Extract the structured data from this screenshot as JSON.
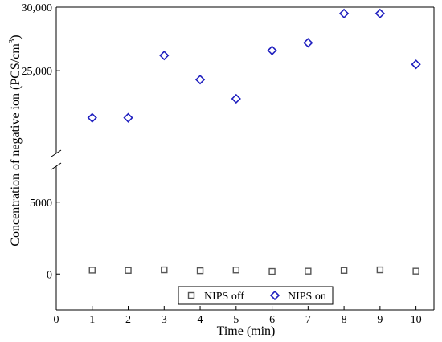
{
  "chart_data": {
    "type": "scatter",
    "xlabel": "Time (min)",
    "ylabel_main": "Concentration of negative ion (PCS/cm",
    "ylabel_sup": "3",
    "ylabel_end": ")",
    "x_ticks": [
      "0",
      "1",
      "2",
      "3",
      "4",
      "5",
      "6",
      "7",
      "8",
      "9",
      "10"
    ],
    "xlim": [
      0,
      10.5
    ],
    "y_axis_break": true,
    "y_lower_range": [
      -2500,
      7500
    ],
    "y_upper_range": [
      18500,
      30000
    ],
    "y_ticks_lower": [
      {
        "value": 0,
        "label": "0"
      },
      {
        "value": 5000,
        "label": "5000"
      }
    ],
    "y_ticks_upper": [
      {
        "value": 25000,
        "label": "25,000"
      },
      {
        "value": 30000,
        "label": "30,000"
      }
    ],
    "grid": false,
    "legend_position": "bottom-center",
    "series": [
      {
        "name": "NIPS off",
        "marker": "square",
        "color": "#555555",
        "x": [
          1,
          2,
          3,
          4,
          5,
          6,
          7,
          8,
          9,
          10
        ],
        "y": [
          270,
          250,
          290,
          230,
          280,
          180,
          200,
          250,
          290,
          200
        ]
      },
      {
        "name": "NIPS on",
        "marker": "diamond",
        "color": "#1f1fbf",
        "x": [
          1,
          2,
          3,
          4,
          5,
          6,
          7,
          8,
          9,
          10
        ],
        "y": [
          21300,
          21300,
          26200,
          24300,
          22800,
          26600,
          27200,
          29500,
          29500,
          25500
        ]
      }
    ]
  }
}
